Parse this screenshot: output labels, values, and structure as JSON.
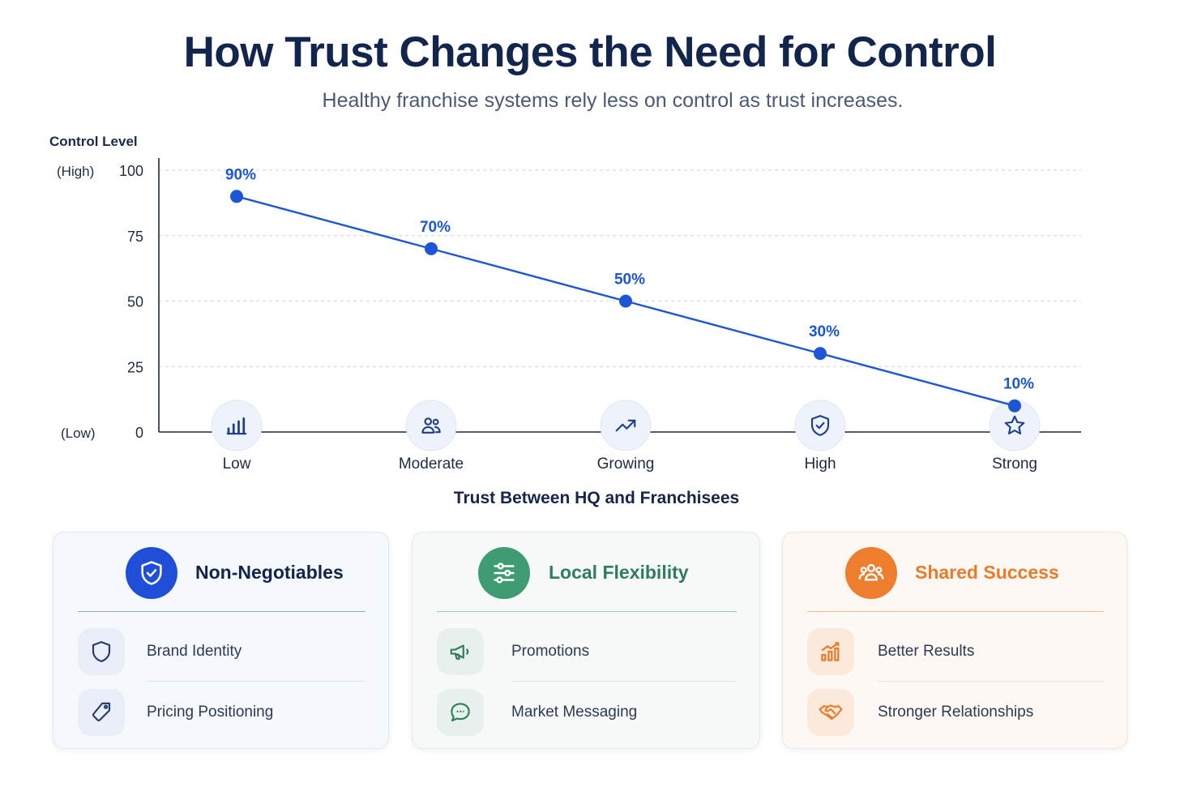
{
  "chart_data": {
    "type": "line",
    "title": "How Trust Changes the Need for Control",
    "subtitle": "Healthy franchise systems rely less on control as trust increases.",
    "ylabel": "Control Level",
    "y_high_label": "(High)",
    "y_low_label": "(Low)",
    "xlabel": "Trust Between HQ and Franchisees",
    "ylim": [
      0,
      100
    ],
    "yticks": [
      "100",
      "75",
      "50",
      "25",
      "0"
    ],
    "grid": true,
    "categories": [
      "Low",
      "Moderate",
      "Growing",
      "High",
      "Strong"
    ],
    "category_icons": [
      "bar-chart-icon",
      "users-icon",
      "trend-up-icon",
      "shield-check-icon",
      "star-icon"
    ],
    "values": [
      90,
      70,
      50,
      30,
      10
    ],
    "data_labels": [
      "90%",
      "70%",
      "50%",
      "30%",
      "10%"
    ],
    "line_color": "#1c55d6"
  },
  "cards": [
    {
      "title": "Non-Negotiables",
      "icon": "shield-check-icon",
      "color": "#1f4fd8",
      "items": [
        {
          "label": "Brand Identity",
          "icon": "shield-icon"
        },
        {
          "label": "Pricing Positioning",
          "icon": "tag-icon"
        }
      ]
    },
    {
      "title": "Local Flexibility",
      "icon": "sliders-icon",
      "color": "#3f9b72",
      "items": [
        {
          "label": "Promotions",
          "icon": "megaphone-icon"
        },
        {
          "label": "Market Messaging",
          "icon": "chat-bubble-icon"
        }
      ]
    },
    {
      "title": "Shared Success",
      "icon": "team-icon",
      "color": "#ee7d2d",
      "items": [
        {
          "label": "Better Results",
          "icon": "growth-chart-icon"
        },
        {
          "label": "Stronger Relationships",
          "icon": "handshake-icon"
        }
      ]
    }
  ]
}
